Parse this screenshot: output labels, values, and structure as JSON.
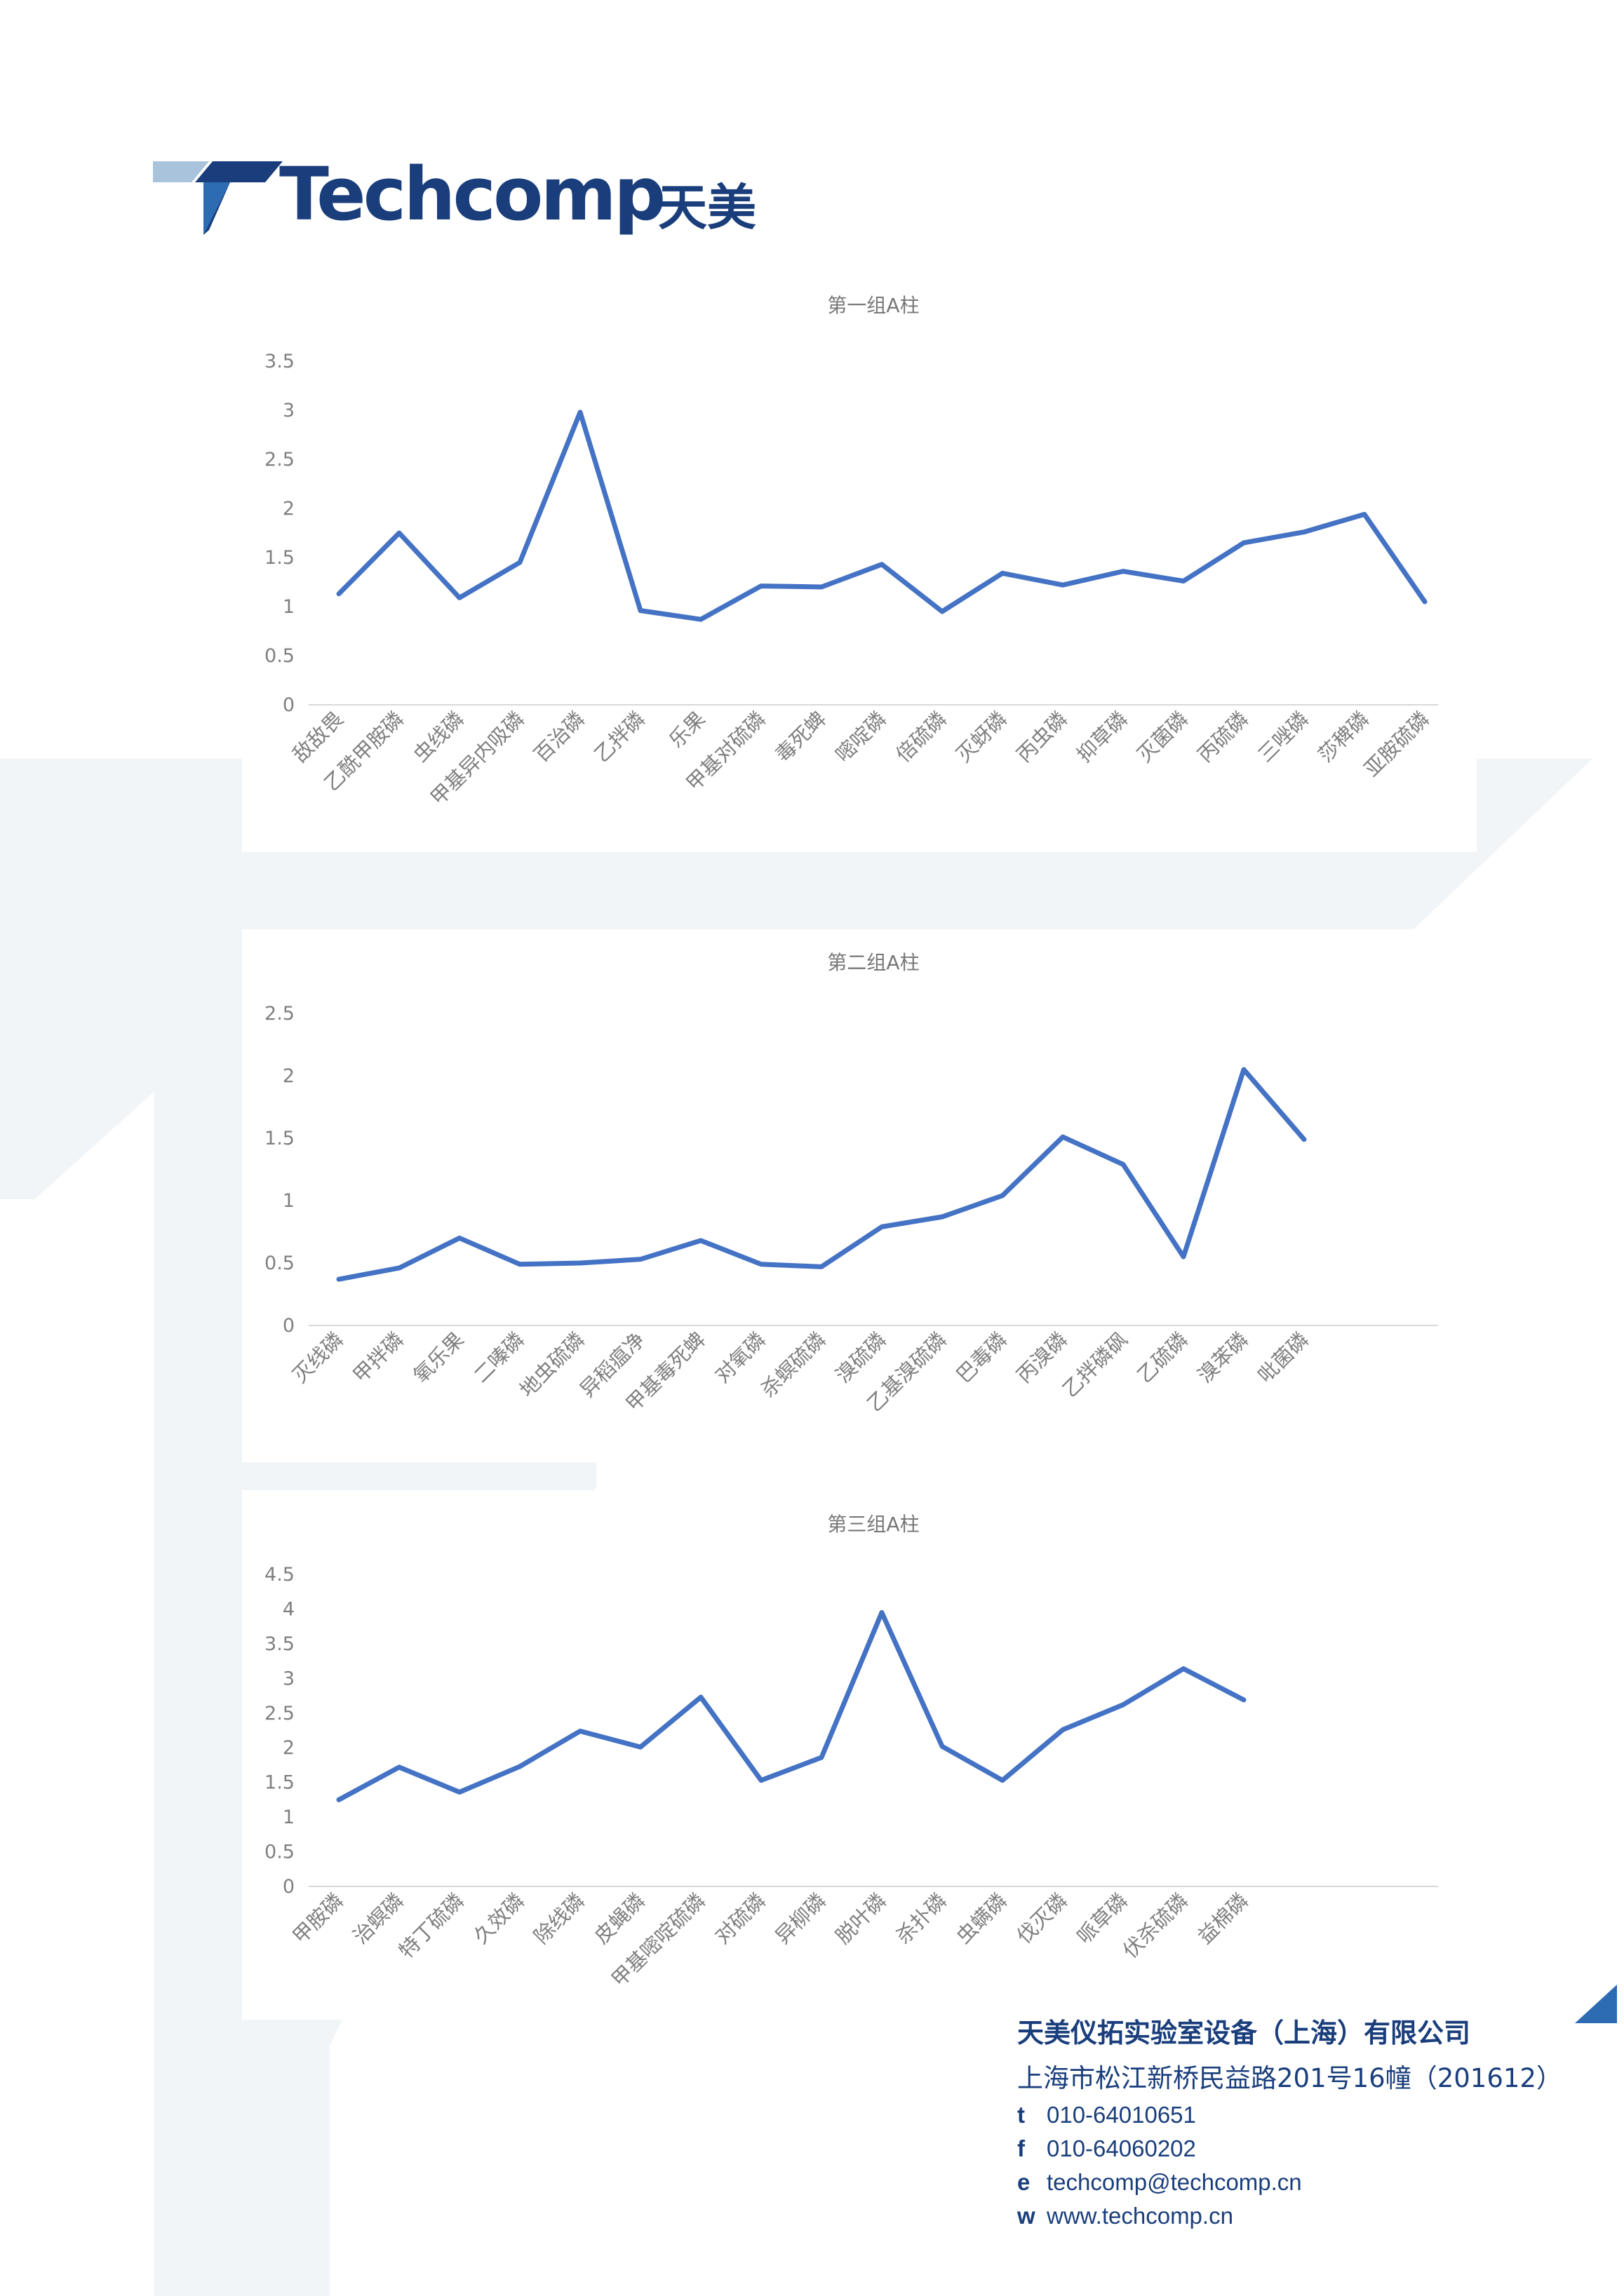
{
  "brand": {
    "logo_text": "Techcomp",
    "logo_cn": "天美",
    "colors": {
      "primary": "#1a3e7c",
      "accent": "#4472c4",
      "light": "#a9c3dc",
      "bg_shape": "#f1f5f8"
    }
  },
  "charts": [
    {
      "title": "第一组A柱",
      "yticks": [
        "0",
        "0.5",
        "1",
        "1.5",
        "2",
        "2.5",
        "3",
        "3.5"
      ]
    },
    {
      "title": "第二组A柱",
      "yticks": [
        "0",
        "0.5",
        "1",
        "1.5",
        "2",
        "2.5"
      ]
    },
    {
      "title": "第三组A柱",
      "yticks": [
        "0",
        "0.5",
        "1",
        "1.5",
        "2",
        "2.5",
        "3",
        "3.5",
        "4",
        "4.5"
      ]
    }
  ],
  "chart_data": [
    {
      "type": "line",
      "title": "第一组A柱",
      "xlabel": "",
      "ylabel": "",
      "ylim": [
        0,
        3.5
      ],
      "grid": false,
      "categories": [
        "敌敌畏",
        "乙酰甲胺磷",
        "虫线磷",
        "甲基异内吸磷",
        "百治磷",
        "乙拌磷",
        "乐果",
        "甲基对硫磷",
        "毒死蜱",
        "嘧啶磷",
        "倍硫磷",
        "灭蚜磷",
        "丙虫磷",
        "抑草磷",
        "灭菌磷",
        "丙硫磷",
        "三唑磷",
        "莎稗磷",
        "亚胺硫磷"
      ],
      "series": [
        {
          "values": [
            1.13,
            1.75,
            1.09,
            1.45,
            2.98,
            0.96,
            0.87,
            1.21,
            1.2,
            1.43,
            0.95,
            1.34,
            1.22,
            1.36,
            1.26,
            1.65,
            1.76,
            1.94,
            1.05
          ]
        }
      ]
    },
    {
      "type": "line",
      "title": "第二组A柱",
      "xlabel": "",
      "ylabel": "",
      "ylim": [
        0,
        2.5
      ],
      "grid": false,
      "categories": [
        "灭线磷",
        "甲拌磷",
        "氧乐果",
        "二嗪磷",
        "地虫硫磷",
        "异稻瘟净",
        "甲基毒死蜱",
        "对氧磷",
        "杀螟硫磷",
        "溴硫磷",
        "乙基溴硫磷",
        "巴毒磷",
        "丙溴磷",
        "乙拌磷砜",
        "乙硫磷",
        "溴苯磷",
        "吡菌磷"
      ],
      "series": [
        {
          "values": [
            0.37,
            0.46,
            0.7,
            0.49,
            0.5,
            0.53,
            0.68,
            0.49,
            0.47,
            0.79,
            0.87,
            1.04,
            1.51,
            1.29,
            0.55,
            2.05,
            1.49
          ]
        }
      ]
    },
    {
      "type": "line",
      "title": "第三组A柱",
      "xlabel": "",
      "ylabel": "",
      "ylim": [
        0,
        4.5
      ],
      "grid": false,
      "categories": [
        "甲胺磷",
        "治螟磷",
        "特丁硫磷",
        "久效磷",
        "除线磷",
        "皮蝇磷",
        "甲基嘧啶硫磷",
        "对硫磷",
        "异柳磷",
        "脱叶磷",
        "杀扑磷",
        "虫螨磷",
        "伐灭磷",
        "哌草磷",
        "伏杀硫磷",
        "益棉磷"
      ],
      "series": [
        {
          "values": [
            1.25,
            1.72,
            1.36,
            1.73,
            2.24,
            2.01,
            2.73,
            1.53,
            1.86,
            3.95,
            2.02,
            1.53,
            2.26,
            2.62,
            3.14,
            2.69
          ]
        }
      ]
    }
  ],
  "footer": {
    "company": "天美仪拓实验室设备（上海）有限公司",
    "address": "上海市松江新桥民益路201号16幢（201612）",
    "contacts": [
      {
        "label": "t",
        "value": "010-64010651"
      },
      {
        "label": "f",
        "value": "010-64060202"
      },
      {
        "label": "e",
        "value": "techcomp@techcomp.cn"
      },
      {
        "label": "w",
        "value": "www.techcomp.cn"
      }
    ]
  }
}
